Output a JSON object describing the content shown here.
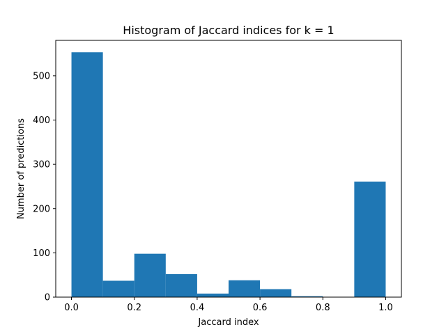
{
  "chart_data": {
    "type": "bar",
    "title": "Histogram of Jaccard indices for k = 1",
    "xlabel": "Jaccard index",
    "ylabel": "Number of predictions",
    "bin_edges": [
      0.0,
      0.1,
      0.2,
      0.3,
      0.4,
      0.5,
      0.6,
      0.7,
      0.8,
      0.9,
      1.0
    ],
    "values": [
      553,
      37,
      98,
      52,
      8,
      38,
      18,
      2,
      0,
      261
    ],
    "xlim": [
      -0.05,
      1.05
    ],
    "ylim": [
      0,
      580
    ],
    "xticks": [
      0.0,
      0.2,
      0.4,
      0.6,
      0.8,
      1.0
    ],
    "xtick_labels": [
      "0.0",
      "0.2",
      "0.4",
      "0.6",
      "0.8",
      "1.0"
    ],
    "yticks": [
      0,
      100,
      200,
      300,
      400,
      500
    ],
    "ytick_labels": [
      "0",
      "100",
      "200",
      "300",
      "400",
      "500"
    ],
    "bar_color": "#1f77b4",
    "grid": false,
    "legend": false
  }
}
